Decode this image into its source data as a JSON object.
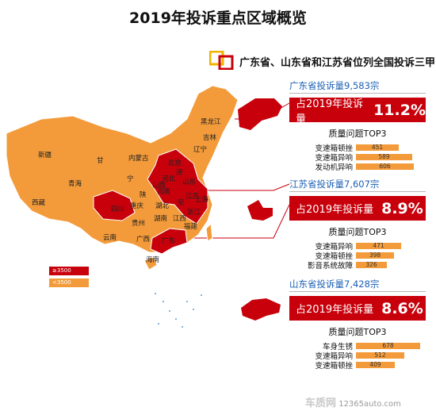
{
  "title": "2019年投诉重点区域概览",
  "subtitle": "广东省、山东省和江苏省位列全国投诉三甲",
  "colors": {
    "high": "#c8000b",
    "low": "#f39b3a",
    "accent": "#1a5fb4"
  },
  "legend": {
    "high": "≥3500",
    "low": "<3500"
  },
  "provinces": {
    "heilongjiang": "黑龙江",
    "jilin": "吉林",
    "liaoning": "辽宁",
    "xinjiang": "新疆",
    "gansu": "甘",
    "neimenggu": "内蒙古",
    "beijing": "北京",
    "tianjin": "津",
    "hebei": "河北",
    "qinghai": "青海",
    "ningxia": "宁",
    "shanxi": "山西",
    "shandong": "山东",
    "shaanxi": "陕",
    "henan": "河南",
    "xizang": "西藏",
    "jiangsu": "江苏",
    "anhui": "安",
    "sichuan": "四川",
    "hubei": "湖北",
    "chongqing": "重庆",
    "shanghai": "上海",
    "zhejiang": "浙江",
    "hunan": "湖南",
    "jiangxi": "江西",
    "guizhou": "贵州",
    "fujian": "福建",
    "yunnan": "云南",
    "guangxi": "广西",
    "guangdong": "广东",
    "hainan": "海南"
  },
  "chart_data": {
    "type": "bar",
    "title": "2019年投诉重点区域概览",
    "subtitle": "广东省、山东省和江苏省位列全国投诉三甲",
    "legend": [
      "≥3500",
      "<3500"
    ],
    "high_provinces": [
      "广东",
      "山东",
      "江苏",
      "四川",
      "河南",
      "河北",
      "北京",
      "湖北",
      "浙江",
      "上海",
      "安徽"
    ],
    "panels": [
      {
        "heading": "广东省投诉量9,583宗",
        "badge_label": "占2019年投诉量",
        "badge_value": "11.2%",
        "top3_title": "质量问题TOP3",
        "categories": [
          "变速箱顿挫",
          "变速箱异响",
          "发动机异响"
        ],
        "values": [
          451,
          589,
          606
        ]
      },
      {
        "heading": "江苏省投诉量7,607宗",
        "badge_label": "占2019年投诉量",
        "badge_value": "8.9%",
        "top3_title": "质量问题TOP3",
        "categories": [
          "变速箱异响",
          "变速箱顿挫",
          "影音系统故障"
        ],
        "values": [
          471,
          398,
          326
        ]
      },
      {
        "heading": "山东省投诉量7,428宗",
        "badge_label": "占2019年投诉量",
        "badge_value": "8.6%",
        "top3_title": "质量问题TOP3",
        "categories": [
          "车身生锈",
          "变速箱异响",
          "变速箱顿挫"
        ],
        "values": [
          678,
          512,
          409
        ]
      }
    ]
  },
  "watermark": {
    "brand": "车质网",
    "url": "12365auto.com"
  }
}
